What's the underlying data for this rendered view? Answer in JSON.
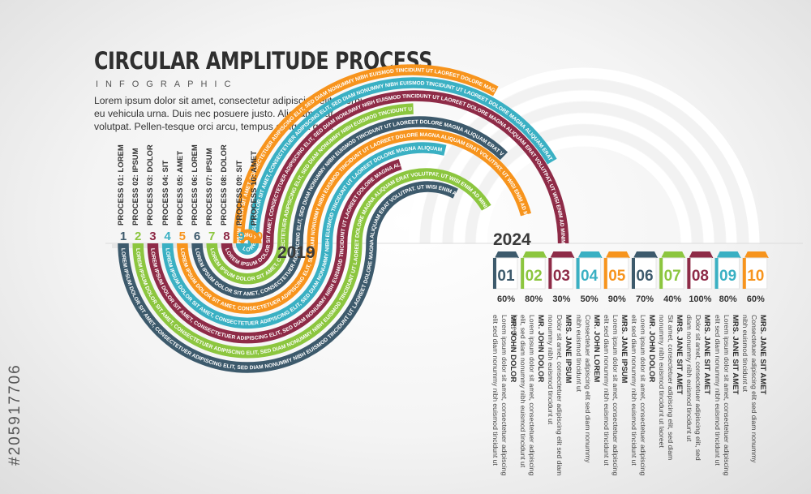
{
  "header": {
    "title": "CIRCULAR AMPLITUDE PROCESS",
    "subtitle": "INFOGRAPHIC",
    "intro": "Lorem ipsum dolor sit amet, consectetur adipiscing elit. Morbi eu vehicula urna. Duis nec posuere justo. Aliquam erat volutpat. Pellen-tesque orci arcu, tempus et ligula quis."
  },
  "years": {
    "start": "2019",
    "end": "2024"
  },
  "band_texts": {
    "inner": "LOREM IPSUM DOLOR SIT AMET, CONSECTETUER ADIPISCING ELIT, SED DIAM NONUMMY NIBH EUISMOD TINCIDUNT UT LAOREET DOLORE MAGNA ALIQUAM ERAT VOLUTPAT. UT WISI ENIM AD MINIM VENIAM, QUIS NOSTRUD EXERCI",
    "outer": "LOREM IPSUM DOLOR SIT AMET, CONSECTETUER ADIPISCING ELIT, SED DIAM NONUMMY NIBH EUISMOD TINCIDUNT UT LAOREET DOLORE MAGNA ALIQUAM ERAT VOLUTPAT. UT WISI ENIM AD MINIM VENIAM, QUIS NOSTRUD EXERCI"
  },
  "processes": [
    {
      "label": "PROCESS 01: LOREM",
      "num": "1",
      "card": "01",
      "pct": "60%",
      "pct_value": 60,
      "name": "MR. JOHN DOLOR",
      "desc": "Lorem ipsum dolor sit amet, consectetuer adipiscing elit sed diam nonummy nibh euismod tincidunt ut",
      "color": "#3d5a6c"
    },
    {
      "label": "PROCESS 02: IPSUM",
      "num": "2",
      "card": "02",
      "pct": "80%",
      "pct_value": 80,
      "name": "MR. JOHN DOLOR",
      "desc": "Lorem ipsum dolor sit amet, consectetuer adipiscing elit, sed diam nonummy nibh euismod tincidunt ut laoreet",
      "color": "#8cc63f"
    },
    {
      "label": "PROCESS 03: DOLOR",
      "num": "3",
      "card": "03",
      "pct": "30%",
      "pct_value": 30,
      "name": "MRS. JANE IPSUM",
      "desc": "Dolor sit amet, consectetuer adipiscing elit sed diam nonummy nibh euismod tincidunt ut",
      "color": "#8e2b47"
    },
    {
      "label": "PROCESS 04: SIT",
      "num": "4",
      "card": "04",
      "pct": "50%",
      "pct_value": 50,
      "name": "MR. JOHN LOREM",
      "desc": "Consectetuer adipiscing elit sed diam nonummy nibh euismod tincidunt ut",
      "color": "#3ab0c3"
    },
    {
      "label": "PROCESS 05: AMET",
      "num": "5",
      "card": "05",
      "pct": "90%",
      "pct_value": 90,
      "name": "MRS. JANE IPSUM",
      "desc": "Lorem ipsum dolor sit amet, consectetuer adipiscing elit sed diam nonummy nibh euismod tincidunt ut",
      "color": "#f7941d"
    },
    {
      "label": "PROCESS 06: LOREM",
      "num": "6",
      "card": "06",
      "pct": "70%",
      "pct_value": 70,
      "name": "MR. JOHN DOLOR",
      "desc": "Lorem ipsum dolor sit amet, consectetuer adipiscing elit sed diam nonummy nibh euismod tincidunt ut",
      "color": "#3d5a6c"
    },
    {
      "label": "PROCESS 07: IPSUM",
      "num": "7",
      "card": "07",
      "pct": "40%",
      "pct_value": 40,
      "name": "MRS. JANE SIT AMET",
      "desc": "Sit amet, consectetuer adipiscing elit, sed diam nonummy nibh euismod tincidunt ut laoreet",
      "color": "#8cc63f"
    },
    {
      "label": "PROCESS 08: DOLOR",
      "num": "8",
      "card": "08",
      "pct": "100%",
      "pct_value": 100,
      "name": "MRS. JANE SIT AMET",
      "desc": "Dolor sit amet, consectetuer adipiscing elit, sed diam nonummy nibh euismod tincidunt ut",
      "color": "#8e2b47"
    },
    {
      "label": "PROCESS 09: SIT",
      "num": "9",
      "card": "09",
      "pct": "80%",
      "pct_value": 80,
      "name": "MRS. JANE SIT AMET",
      "desc": "Lorem ipsum dolor sit amet, consectetuer adipiscing elit sed diam nonummy nibh euismod tincidunt ut",
      "color": "#3ab0c3"
    },
    {
      "label": "PROCESS 10: AMET",
      "num": "10",
      "card": "10",
      "pct": "60%",
      "pct_value": 60,
      "name": "MRS. JANE SIT AMET",
      "desc": "Consectetuer adipiscing elit sed diam nonummy nibh euismod tincidunt ut",
      "color": "#f7941d"
    }
  ],
  "watermark": "#205917706"
}
